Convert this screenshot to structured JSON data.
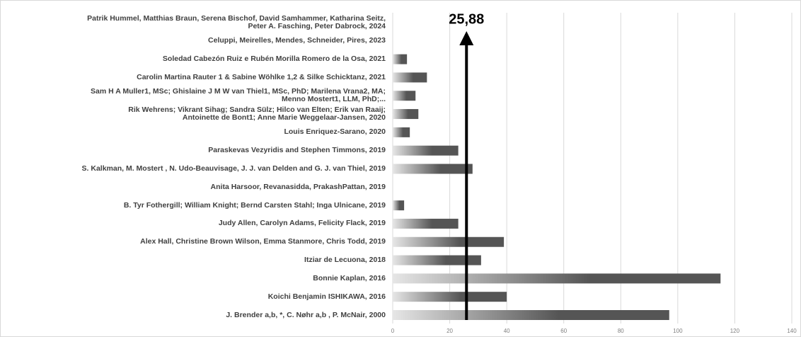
{
  "chart_data": {
    "type": "bar",
    "orientation": "horizontal",
    "categories": [
      "Patrik Hummel,  Matthias Braun, Serena Bischof,   David Samhammer,   Katharina Seitz,\nPeter A. Fasching, Peter Dabrock, 2024",
      "Celuppi, Meirelles, Mendes, Schneider, Pires, 2023",
      "Soledad Cabezón Ruiz  e Rubén Morilla Romero de la Osa, 2021",
      "Carolin Martina Rauter 1 & Sabine Wöhlke 1,2 & Silke Schicktanz, 2021",
      "Sam H A Muller1, MSc; Ghislaine J M W van Thiel1, MSc, PhD; Marilena Vrana2, MA;\nMenno Mostert1, LLM, PhD;...",
      "Rik Wehrens; Vikrant Sihag; Sandra Sülz; Hilco van Elten; Erik van Raaij;\nAntoinette de Bont1; Anne Marie Weggelaar-Jansen, 2020",
      "Louis Enriquez-Sarano, 2020",
      "Paraskevas Vezyridis and Stephen Timmons, 2019",
      "S. Kalkman, M. Mostert , N. Udo-Beauvisage, J. J. van Delden and G. J. van Thiel, 2019",
      "Anita Harsoor, Revanasidda, PrakashPattan, 2019",
      "B. Tyr Fothergill; William Knight; Bernd Carsten Stahl; Inga Ulnicane, 2019",
      "Judy Allen, Carolyn Adams, Felicity Flack, 2019",
      "Alex Hall, Christine Brown Wilson, Emma Stanmore, Chris Todd, 2019",
      "Itziar de Lecuona, 2018",
      "Bonnie Kaplan, 2016",
      "Koichi Benjamin ISHIKAWA, 2016",
      "J. Brender a,b, *, C. Nøhr a,b , P. McNair, 2000"
    ],
    "values": [
      null,
      null,
      5,
      12,
      8,
      9,
      6,
      23,
      28,
      null,
      4,
      23,
      39,
      31,
      115,
      40,
      97
    ],
    "color_start": "#e6e6e6",
    "color_end": "#555555",
    "xlim": [
      0,
      140
    ],
    "xticks": [
      0,
      20,
      40,
      60,
      80,
      100,
      120,
      140
    ],
    "grid": true,
    "reference": {
      "value": 25.88,
      "label": "25,88"
    }
  }
}
